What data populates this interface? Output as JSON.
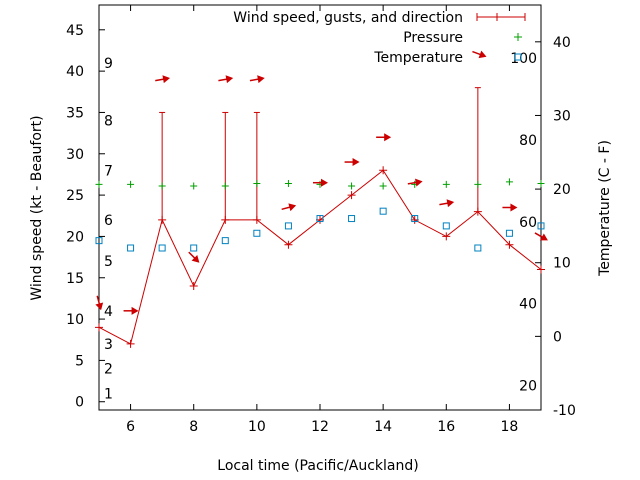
{
  "chart_data": {
    "type": "line",
    "xlabel": "Local time (Pacific/Auckland)",
    "ylabel_left": "Wind speed (kt - Beaufort)",
    "ylabel_right": "Temperature (C - F)",
    "x_range": [
      5,
      19
    ],
    "y_left_range": [
      -1,
      48
    ],
    "y_right_range": [
      -10,
      45
    ],
    "x_ticks": [
      6,
      8,
      10,
      12,
      14,
      16,
      18
    ],
    "y_left_ticks": [
      0,
      5,
      10,
      15,
      20,
      25,
      30,
      35,
      40,
      45
    ],
    "y_right_ticks": [
      -10,
      0,
      10,
      20,
      30,
      40
    ],
    "beaufort_labels": [
      {
        "label": "1",
        "value": 1
      },
      {
        "label": "2",
        "value": 4
      },
      {
        "label": "3",
        "value": 7
      },
      {
        "label": "4",
        "value": 11
      },
      {
        "label": "5",
        "value": 17
      },
      {
        "label": "6",
        "value": 22
      },
      {
        "label": "7",
        "value": 28
      },
      {
        "label": "8",
        "value": 34
      },
      {
        "label": "9",
        "value": 41
      }
    ],
    "fahrenheit_labels": [
      {
        "label": "20",
        "value": 20
      },
      {
        "label": "40",
        "value": 40
      },
      {
        "label": "60",
        "value": 60
      },
      {
        "label": "80",
        "value": 80
      },
      {
        "label": "100",
        "value": 100
      }
    ],
    "legend": [
      {
        "label": "Wind speed, gusts, and direction",
        "color": "#cc0000"
      },
      {
        "label": "Pressure",
        "color": "#00a000"
      },
      {
        "label": "Temperature",
        "color": "#0080c0"
      }
    ],
    "series": [
      {
        "name": "Wind speed",
        "color": "#cc0000",
        "x": [
          5,
          6,
          7,
          8,
          9,
          10,
          11,
          12,
          13,
          14,
          15,
          16,
          17,
          18,
          19
        ],
        "values": [
          9,
          7,
          22,
          14,
          22,
          22,
          19,
          22,
          25,
          28,
          22,
          20,
          23,
          19,
          16
        ]
      },
      {
        "name": "Gusts",
        "color": "#cc0000",
        "x": [
          7,
          9,
          10,
          17
        ],
        "values": [
          35,
          35,
          35,
          38
        ]
      },
      {
        "name": "Pressure",
        "color": "#00a000",
        "x": [
          5,
          6,
          7,
          8,
          9,
          10,
          11,
          12,
          13,
          14,
          15,
          16,
          17,
          18,
          19
        ],
        "values": [
          26.3,
          26.3,
          26.1,
          26.1,
          26.1,
          26.4,
          26.4,
          26.3,
          26.1,
          26.1,
          26.3,
          26.3,
          26.3,
          26.6,
          26.4
        ]
      },
      {
        "name": "Temperature",
        "color": "#0080c0",
        "axis": "right",
        "x": [
          5,
          6,
          7,
          8,
          9,
          10,
          11,
          12,
          13,
          14,
          15,
          16,
          17,
          18,
          19
        ],
        "values": [
          13,
          12,
          12,
          12,
          13,
          14,
          15,
          16,
          16,
          17,
          16,
          15,
          12,
          14,
          15
        ]
      }
    ],
    "wind_direction_arrows": [
      {
        "x": 5,
        "speed": 12,
        "angle_deg": 75
      },
      {
        "x": 6,
        "speed": 11,
        "angle_deg": 0
      },
      {
        "x": 7,
        "speed": 39,
        "angle_deg": -10
      },
      {
        "x": 8,
        "speed": 17.5,
        "angle_deg": 45
      },
      {
        "x": 9,
        "speed": 39,
        "angle_deg": -10
      },
      {
        "x": 10,
        "speed": 39,
        "angle_deg": -10
      },
      {
        "x": 11,
        "speed": 23.5,
        "angle_deg": -15
      },
      {
        "x": 12,
        "speed": 26.5,
        "angle_deg": 0
      },
      {
        "x": 13,
        "speed": 29,
        "angle_deg": 0
      },
      {
        "x": 14,
        "speed": 32,
        "angle_deg": 0
      },
      {
        "x": 15,
        "speed": 26.5,
        "angle_deg": -10
      },
      {
        "x": 16,
        "speed": 24,
        "angle_deg": -10
      },
      {
        "x": 18,
        "speed": 23.5,
        "angle_deg": 0
      },
      {
        "x": 19,
        "speed": 20,
        "angle_deg": 30
      }
    ]
  }
}
